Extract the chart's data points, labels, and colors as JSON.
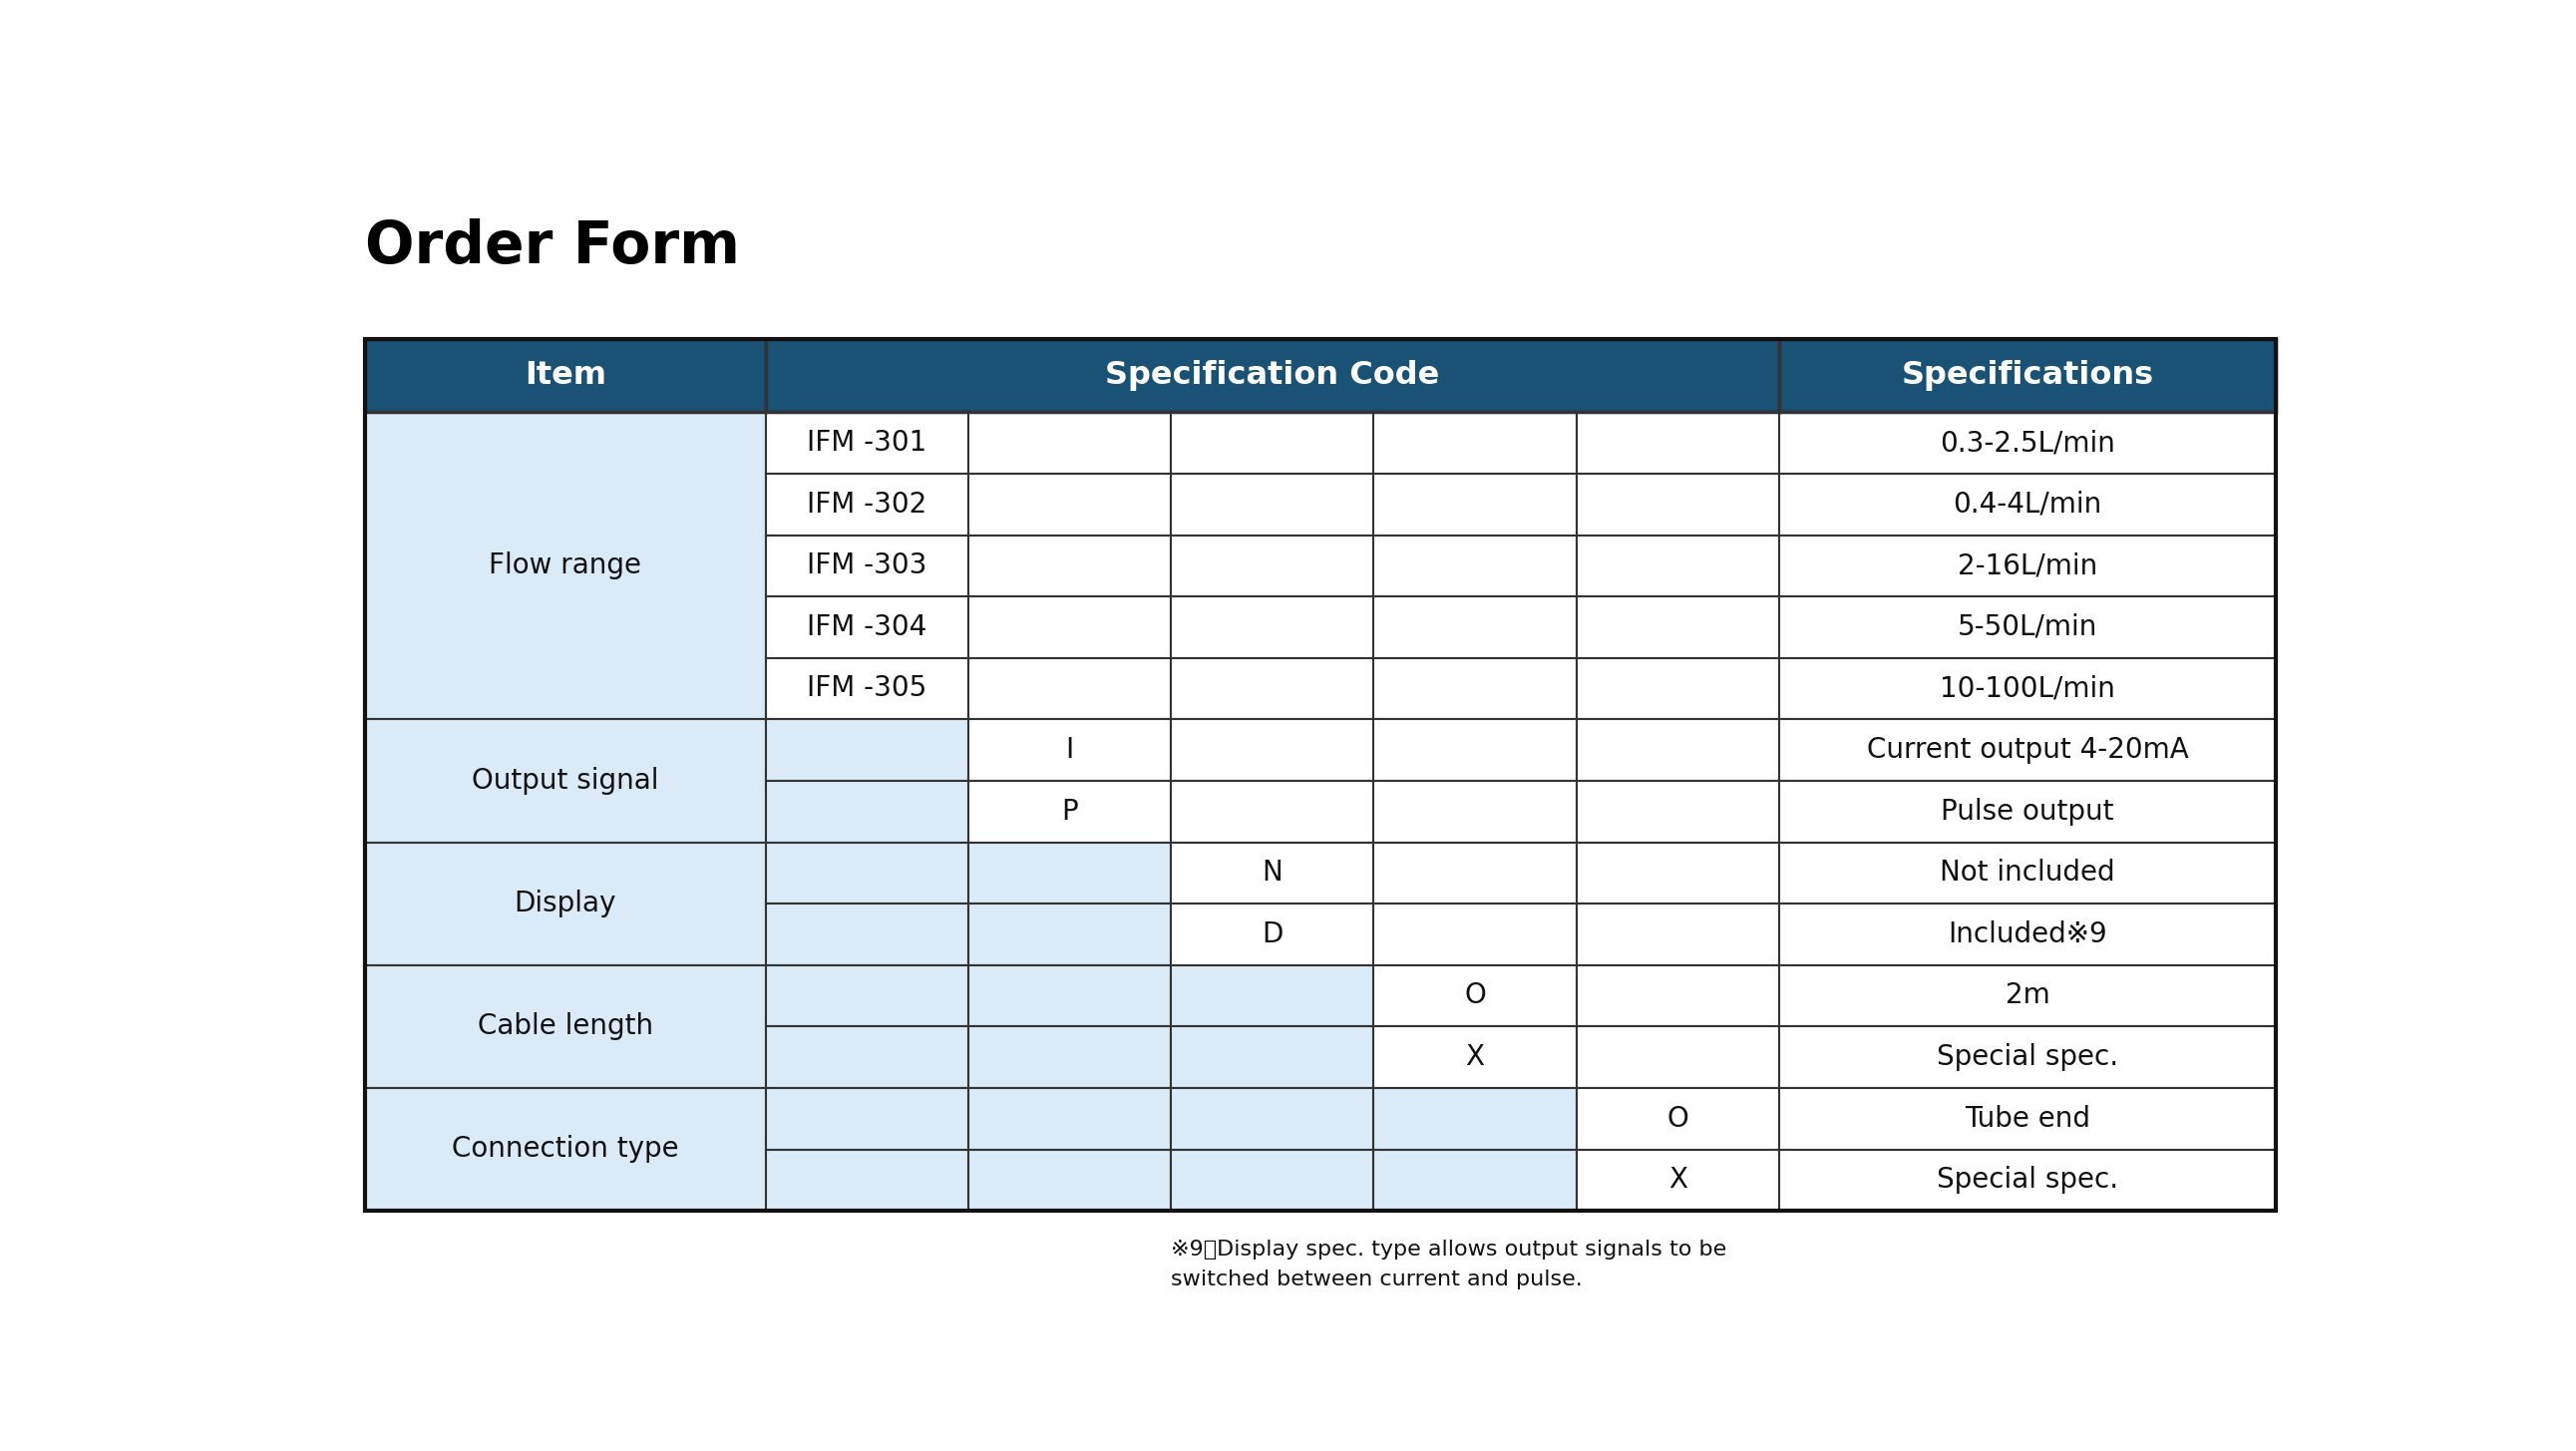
{
  "title": "Order Form",
  "header_bg": "#1a5276",
  "header_text_color": "#ffffff",
  "row_bg_light": "#daeaf7",
  "row_bg_white": "#ffffff",
  "border_color": "#333333",
  "text_color": "#111111",
  "footnote_line1": "※9：Display spec. type allows output signals to be",
  "footnote_line2": "switched between current and pulse.",
  "rows": [
    {
      "item": "Flow range",
      "sub_codes": [
        "IFM -301",
        "IFM -302",
        "IFM -303",
        "IFM -304",
        "IFM -305"
      ],
      "active_col": 0,
      "specs": [
        "0.3-2.5L/min",
        "0.4-4L/min",
        "2-16L/min",
        "5-50L/min",
        "10-100L/min"
      ]
    },
    {
      "item": "Output signal",
      "sub_codes": [
        "I",
        "P"
      ],
      "active_col": 1,
      "specs": [
        "Current output 4-20mA",
        "Pulse output"
      ]
    },
    {
      "item": "Display",
      "sub_codes": [
        "N",
        "D"
      ],
      "active_col": 2,
      "specs": [
        "Not included",
        "Included※9"
      ]
    },
    {
      "item": "Cable length",
      "sub_codes": [
        "O",
        "X"
      ],
      "active_col": 3,
      "specs": [
        "2m",
        "Special spec."
      ]
    },
    {
      "item": "Connection type",
      "sub_codes": [
        "O",
        "X"
      ],
      "active_col": 4,
      "specs": [
        "Tube end",
        "Special spec."
      ]
    }
  ]
}
